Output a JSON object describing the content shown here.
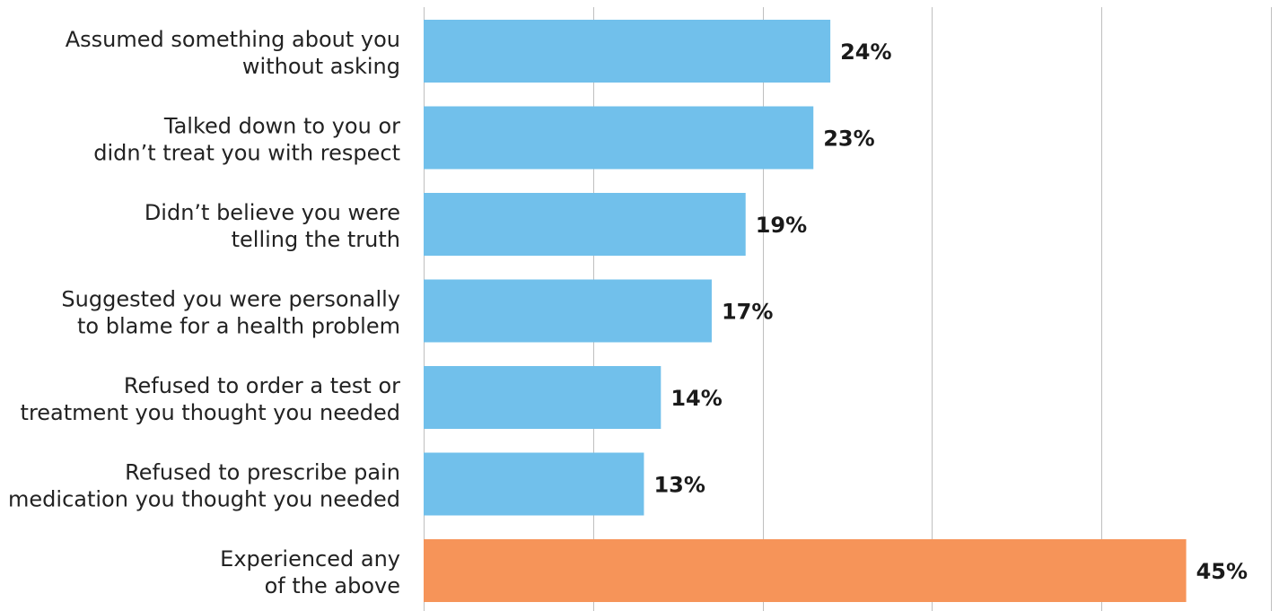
{
  "chart_data": {
    "type": "bar",
    "orientation": "horizontal",
    "categories": [
      [
        "Assumed something about you",
        "without asking"
      ],
      [
        "Talked down to you or",
        "didn’t treat you with respect"
      ],
      [
        "Didn’t believe you were",
        "telling the truth"
      ],
      [
        "Suggested you were personally",
        "to blame for a health problem"
      ],
      [
        "Refused to order a test or",
        "treatment you thought you needed"
      ],
      [
        "Refused to prescribe pain",
        "medication you thought you needed"
      ],
      [
        "Experienced any",
        "of the above"
      ]
    ],
    "values": [
      24,
      23,
      19,
      17,
      14,
      13,
      45
    ],
    "value_labels": [
      "24%",
      "23%",
      "19%",
      "17%",
      "14%",
      "13%",
      "45%"
    ],
    "bar_colors": [
      "#71c0eb",
      "#71c0eb",
      "#71c0eb",
      "#71c0eb",
      "#71c0eb",
      "#71c0eb",
      "#f69459"
    ],
    "xlim": [
      0,
      50
    ],
    "x_grid_values": [
      0,
      10,
      20,
      30,
      40,
      50
    ],
    "grid": true,
    "legend": "none",
    "title": "",
    "xlabel": "",
    "ylabel": ""
  }
}
